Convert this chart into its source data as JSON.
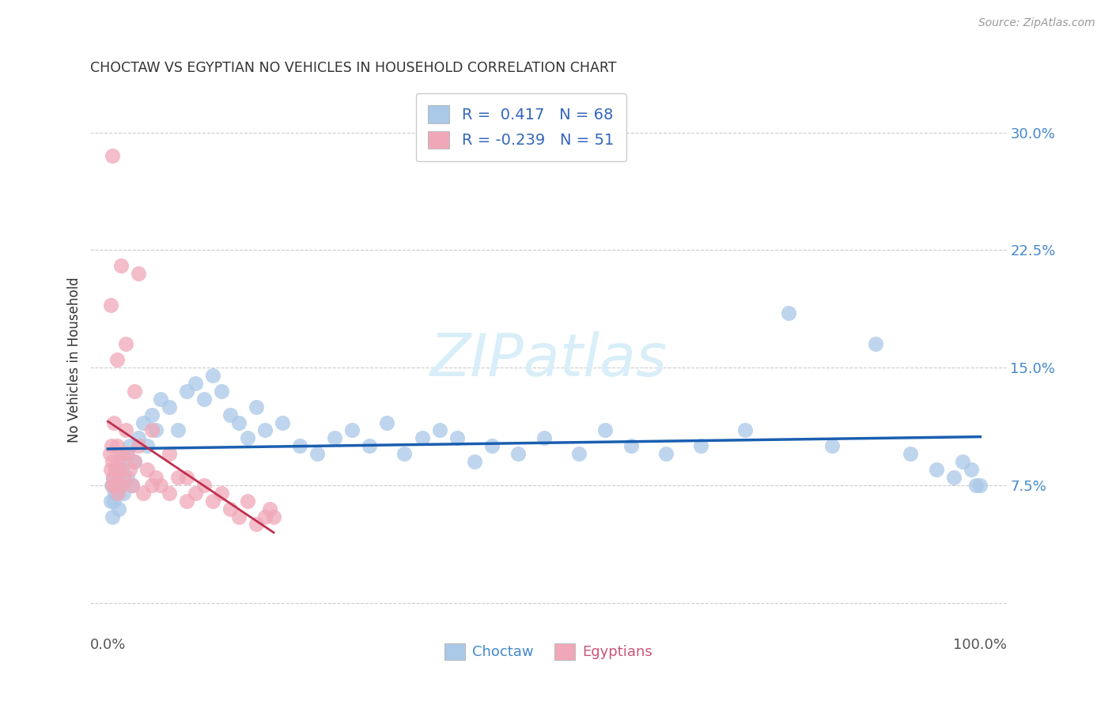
{
  "title": "CHOCTAW VS EGYPTIAN NO VEHICLES IN HOUSEHOLD CORRELATION CHART",
  "source": "Source: ZipAtlas.com",
  "ylabel_label": "No Vehicles in Household",
  "choctaw_label": "Choctaw",
  "egyptian_label": "Egyptians",
  "choctaw_R": 0.417,
  "choctaw_N": 68,
  "egyptian_R": -0.239,
  "egyptian_N": 51,
  "blue_scatter_color": "#aac8e8",
  "pink_scatter_color": "#f0a8b8",
  "blue_line_color": "#1a5fb0",
  "pink_line_color": "#c03050",
  "background_color": "#ffffff",
  "grid_color": "#cccccc",
  "title_color": "#333333",
  "source_color": "#999999",
  "watermark_color": "#d8eef8",
  "x_ticks": [
    0,
    25,
    50,
    75,
    100
  ],
  "x_tick_labels": [
    "0.0%",
    "",
    "",
    "",
    "100.0%"
  ],
  "y_ticks": [
    0,
    7.5,
    15.0,
    22.5,
    30.0
  ],
  "y_tick_labels": [
    "",
    "7.5%",
    "15.0%",
    "22.5%",
    "30.0%"
  ],
  "xlim": [
    -2,
    103
  ],
  "ylim": [
    -2,
    33
  ],
  "choctaw_x": [
    0.3,
    0.4,
    0.5,
    0.6,
    0.7,
    0.8,
    0.9,
    1.0,
    1.1,
    1.2,
    1.4,
    1.5,
    1.6,
    1.8,
    2.0,
    2.2,
    2.5,
    2.8,
    3.0,
    3.5,
    4.0,
    4.5,
    5.0,
    5.5,
    6.0,
    7.0,
    8.0,
    9.0,
    10.0,
    11.0,
    12.0,
    13.0,
    14.0,
    15.0,
    16.0,
    17.0,
    18.0,
    20.0,
    22.0,
    24.0,
    26.0,
    28.0,
    30.0,
    32.0,
    34.0,
    36.0,
    38.0,
    40.0,
    42.0,
    44.0,
    47.0,
    50.0,
    54.0,
    57.0,
    60.0,
    64.0,
    68.0,
    73.0,
    78.0,
    83.0,
    88.0,
    92.0,
    95.0,
    97.0,
    98.0,
    99.0,
    99.5,
    100.0
  ],
  "choctaw_y": [
    6.5,
    7.5,
    5.5,
    8.0,
    6.5,
    7.0,
    8.5,
    7.0,
    8.0,
    6.0,
    9.0,
    7.5,
    8.5,
    7.0,
    9.5,
    8.0,
    10.0,
    7.5,
    9.0,
    10.5,
    11.5,
    10.0,
    12.0,
    11.0,
    13.0,
    12.5,
    11.0,
    13.5,
    14.0,
    13.0,
    14.5,
    13.5,
    12.0,
    11.5,
    10.5,
    12.5,
    11.0,
    11.5,
    10.0,
    9.5,
    10.5,
    11.0,
    10.0,
    11.5,
    9.5,
    10.5,
    11.0,
    10.5,
    9.0,
    10.0,
    9.5,
    10.5,
    9.5,
    11.0,
    10.0,
    9.5,
    10.0,
    11.0,
    18.5,
    10.0,
    16.5,
    9.5,
    8.5,
    8.0,
    9.0,
    8.5,
    7.5,
    7.5
  ],
  "egyptian_x": [
    0.2,
    0.3,
    0.4,
    0.5,
    0.5,
    0.6,
    0.7,
    0.8,
    0.9,
    1.0,
    1.1,
    1.2,
    1.3,
    1.5,
    1.6,
    1.8,
    2.0,
    2.2,
    2.5,
    2.8,
    3.0,
    3.5,
    4.0,
    4.5,
    5.0,
    5.5,
    6.0,
    7.0,
    8.0,
    9.0,
    10.0,
    11.0,
    12.0,
    13.0,
    14.0,
    15.0,
    16.0,
    17.0,
    18.0,
    18.5,
    19.0,
    0.5,
    1.5,
    3.5,
    0.3,
    2.0,
    1.0,
    3.0,
    5.0,
    7.0,
    9.0
  ],
  "egyptian_y": [
    9.5,
    8.5,
    10.0,
    7.5,
    9.0,
    8.0,
    11.5,
    7.5,
    8.5,
    10.0,
    7.0,
    9.0,
    8.5,
    7.5,
    9.5,
    8.0,
    11.0,
    9.5,
    8.5,
    7.5,
    9.0,
    10.0,
    7.0,
    8.5,
    7.5,
    8.0,
    7.5,
    7.0,
    8.0,
    6.5,
    7.0,
    7.5,
    6.5,
    7.0,
    6.0,
    5.5,
    6.5,
    5.0,
    5.5,
    6.0,
    5.5,
    28.5,
    21.5,
    21.0,
    19.0,
    16.5,
    15.5,
    13.5,
    11.0,
    9.5,
    8.0
  ]
}
